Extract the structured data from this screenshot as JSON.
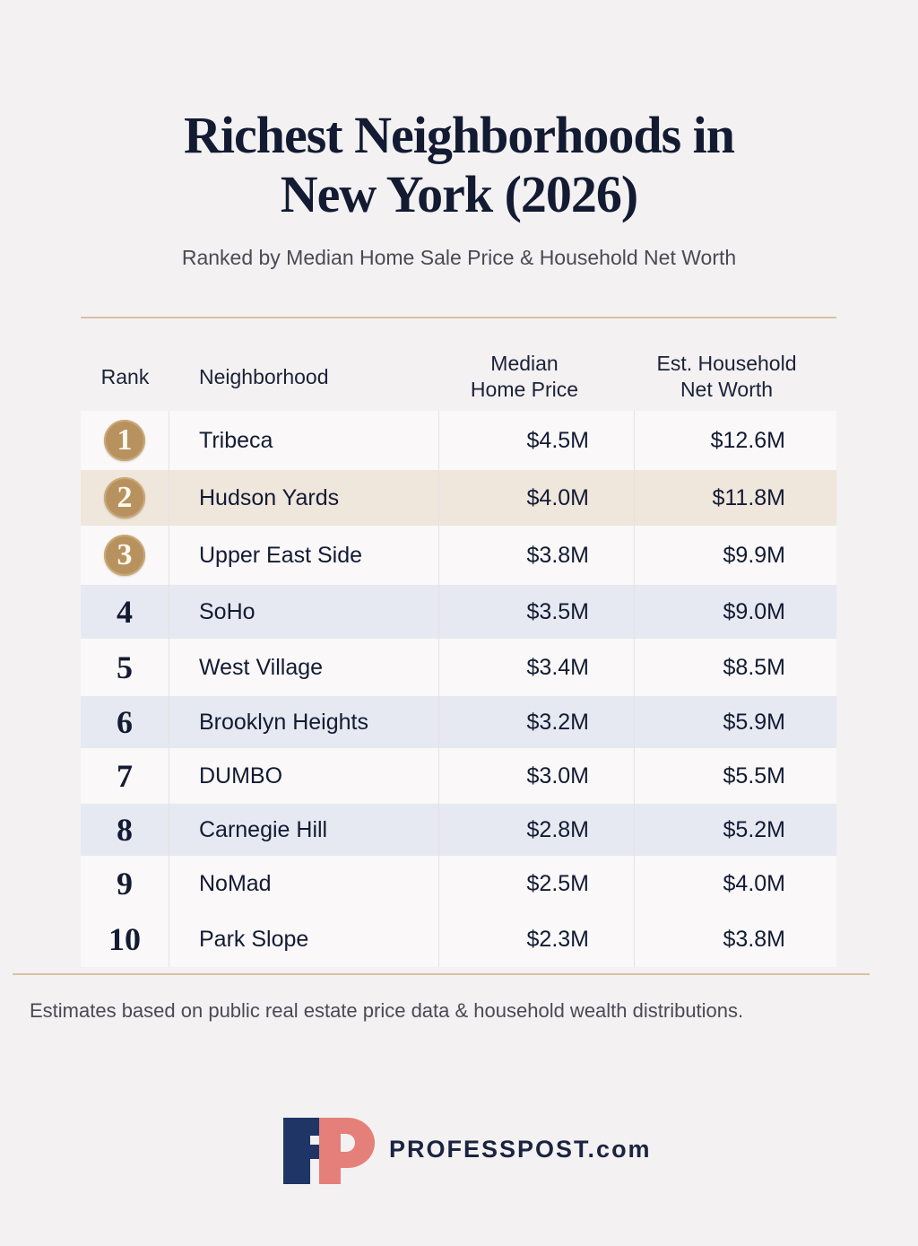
{
  "header": {
    "title_line1": "Richest Neighborhoods in",
    "title_line2": "New York (2026)",
    "subtitle": "Ranked by Median Home Sale Price & Household Net Worth"
  },
  "table": {
    "columns": {
      "rank": "Rank",
      "neighborhood": "Neighborhood",
      "price": "Median\nHome Price",
      "worth": "Est. Household\nNet Worth"
    },
    "rows": [
      {
        "rank": "1",
        "name": "Tribeca",
        "price": "$4.5M",
        "worth": "$12.6M",
        "style": "medal"
      },
      {
        "rank": "2",
        "name": "Hudson Yards",
        "price": "$4.0M",
        "worth": "$11.8M",
        "style": "medal"
      },
      {
        "rank": "3",
        "name": "Upper East Side",
        "price": "$3.8M",
        "worth": "$9.9M",
        "style": "medal"
      },
      {
        "rank": "4",
        "name": "SoHo",
        "price": "$3.5M",
        "worth": "$9.0M",
        "style": "plain"
      },
      {
        "rank": "5",
        "name": "West Village",
        "price": "$3.4M",
        "worth": "$8.5M",
        "style": "plain"
      },
      {
        "rank": "6",
        "name": "Brooklyn Heights",
        "price": "$3.2M",
        "worth": "$5.9M",
        "style": "plain"
      },
      {
        "rank": "7",
        "name": "DUMBO",
        "price": "$3.0M",
        "worth": "$5.5M",
        "style": "plain"
      },
      {
        "rank": "8",
        "name": "Carnegie Hill",
        "price": "$2.8M",
        "worth": "$5.2M",
        "style": "plain"
      },
      {
        "rank": "9",
        "name": "NoMad",
        "price": "$2.5M",
        "worth": "$4.0M",
        "style": "plain"
      },
      {
        "rank": "10",
        "name": "Park Slope",
        "price": "$2.3M",
        "worth": "$3.8M",
        "style": "plain"
      }
    ]
  },
  "footnote": "Estimates based on public real estate price data & household wealth distributions.",
  "brand": {
    "logo_text": "FP",
    "name": "PROFESSPOST.com",
    "colors": {
      "navy": "#1e3566",
      "salmon": "#e57f7a",
      "gold": "#b8925e"
    }
  }
}
